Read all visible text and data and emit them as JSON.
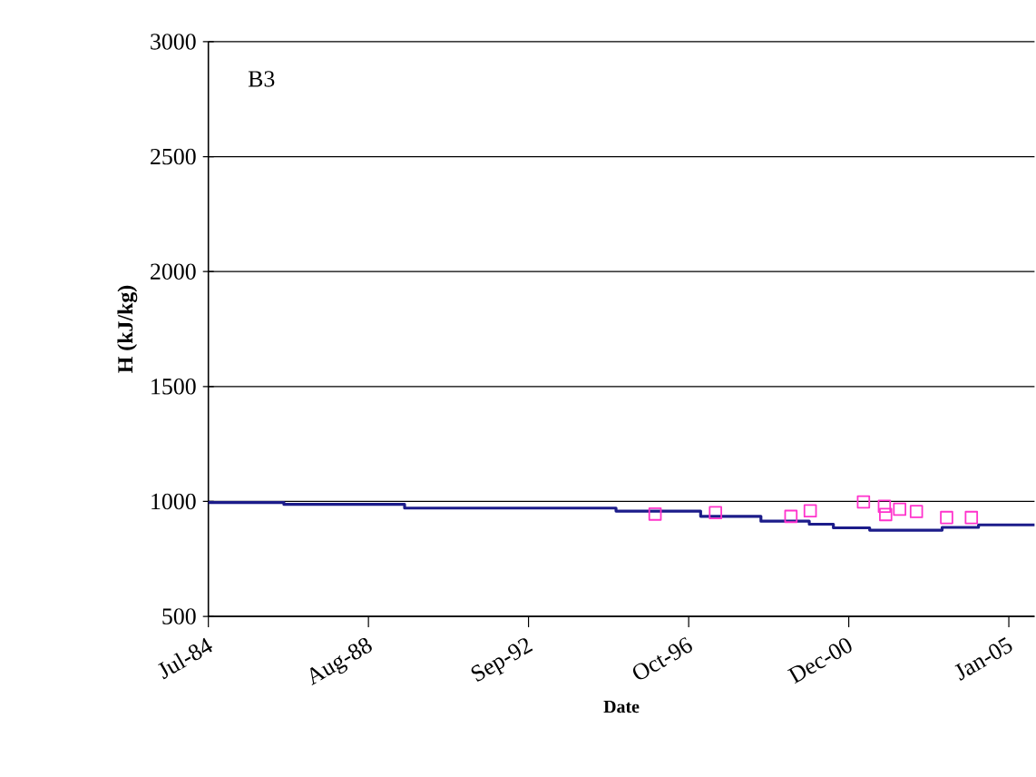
{
  "chart_data": {
    "type": "step",
    "xlabel": "Date",
    "ylabel": "H (kJ/kg)",
    "annotations": [
      "B3"
    ],
    "xlim": [
      "1984-07-01",
      "2005-09-11"
    ],
    "xticks": [
      {
        "value": "1984-07-01",
        "label": "Jul-84"
      },
      {
        "value": "1988-08-09",
        "label": "Aug-88"
      },
      {
        "value": "1992-09-17",
        "label": "Sep-92"
      },
      {
        "value": "1996-10-27",
        "label": "Oct-96"
      },
      {
        "value": "2000-12-05",
        "label": "Dec-00"
      },
      {
        "value": "2005-01-13",
        "label": "Jan-05"
      }
    ],
    "ylim": [
      500,
      3000
    ],
    "yticks": [
      500,
      1000,
      1500,
      2000,
      2500,
      3000
    ],
    "grid": "y",
    "series": [
      {
        "color": "#1c1c8a",
        "marker": "none",
        "x": [
          "1984-07-01",
          "1986-06-09",
          "1989-07-14",
          "1994-12-16",
          "1997-02-16",
          "1998-09-04",
          "1999-12-01",
          "2000-07-14",
          "2001-06-19",
          "2003-04-29",
          "2004-04-04",
          "2005-09-11"
        ],
        "values": [
          995,
          987,
          971,
          958,
          935,
          914,
          901,
          885,
          875,
          887,
          898,
          898
        ]
      },
      {
        "type": "scatter",
        "color": "#ff33cc",
        "marker": "square",
        "x": [
          "1995-12-17",
          "1997-07-05",
          "1999-06-12",
          "1999-12-10",
          "2001-04-22",
          "2001-11-04",
          "2001-11-16",
          "2002-03-27",
          "2002-08-31",
          "2003-06-10",
          "2004-01-28"
        ],
        "values": [
          945,
          951,
          935,
          959,
          998,
          979,
          943,
          966,
          956,
          930,
          930
        ]
      }
    ]
  }
}
